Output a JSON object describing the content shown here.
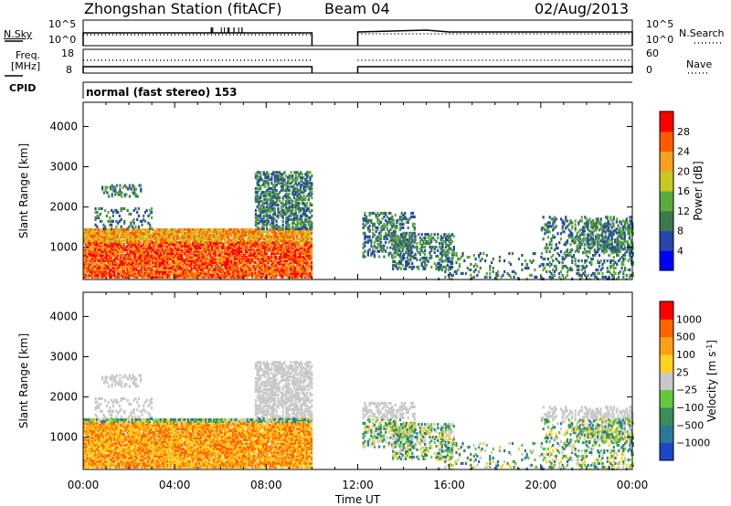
{
  "header": {
    "station": "Zhongshan Station (fitACF)",
    "beam": "Beam 04",
    "date": "02/Aug/2013"
  },
  "panels": {
    "nsky_label": "N.Sky",
    "nsearch_label": "N.Search",
    "freq_label": "Freq.",
    "freq_unit": "[MHz]",
    "nave_label": "Nave",
    "cpid_label": "CPID",
    "cpid_text": "normal (fast stereo) 153",
    "noise_left_ticks": [
      "10^5",
      "10^0"
    ],
    "noise_right_ticks": [
      "10^5",
      "10^0"
    ],
    "freq_left_ticks": [
      "18",
      "8"
    ],
    "nave_right_ticks": [
      "60",
      "0"
    ]
  },
  "chart_data": [
    {
      "type": "heatmap",
      "id": "power",
      "ylabel": "Slant Range [km]",
      "xlabel": "Time UT",
      "x_ticks": [
        "00:00",
        "04:00",
        "08:00",
        "12:00",
        "16:00",
        "20:00",
        "00:00"
      ],
      "xlim_hours": [
        0,
        24
      ],
      "y_ticks": [
        1000,
        2000,
        3000,
        4000
      ],
      "ylim_km": [
        200,
        4600
      ],
      "colorbar": {
        "label": "Power [dB]",
        "ticks": [
          "4",
          "8",
          "12",
          "16",
          "20",
          "24",
          "28"
        ],
        "colors": [
          "#0000ff",
          "#2846a8",
          "#3c7850",
          "#5aaa3c",
          "#c8c81e",
          "#f5a01e",
          "#ff5a00",
          "#ff0000"
        ]
      },
      "data_gap_hours": [
        10.0,
        12.0
      ]
    },
    {
      "type": "heatmap",
      "id": "velocity",
      "ylabel": "Slant Range [km]",
      "xlabel": "Time UT",
      "x_ticks": [
        "00:00",
        "04:00",
        "08:00",
        "12:00",
        "16:00",
        "20:00",
        "00:00"
      ],
      "xlim_hours": [
        0,
        24
      ],
      "y_ticks": [
        1000,
        2000,
        3000,
        4000
      ],
      "ylim_km": [
        200,
        4600
      ],
      "colorbar": {
        "label": "Velocity [m s",
        "label_sup": "-1",
        "label_end": "]",
        "ticks": [
          "1000",
          "500",
          "100",
          "25",
          "−25",
          "−100",
          "−500",
          "−1000"
        ],
        "colors": [
          "#1e46c8",
          "#28789a",
          "#3c8c5a",
          "#64c83c",
          "#c8c8c8",
          "#ffd21e",
          "#ffa014",
          "#ff6400",
          "#ff0000"
        ]
      },
      "data_gap_hours": [
        10.0,
        12.0
      ]
    }
  ]
}
